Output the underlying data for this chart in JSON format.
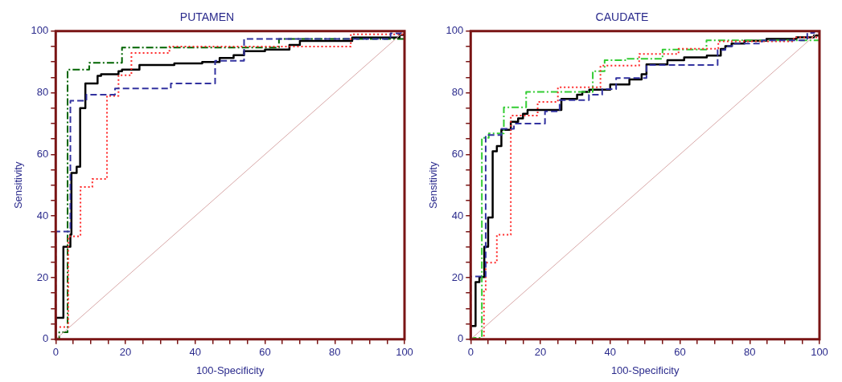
{
  "chart_data": [
    {
      "type": "step",
      "title": "PUTAMEN",
      "xlabel": "100-Specificity",
      "ylabel": "Sensitivity",
      "xlim": [
        0,
        100
      ],
      "ylim": [
        0,
        100
      ],
      "xticks": [
        0,
        {
          "value": 5,
          "label": null
        },
        {
          "value": 10,
          "label": null
        },
        {
          "value": 15,
          "label": null
        },
        20,
        {
          "value": 25,
          "label": null
        },
        {
          "value": 30,
          "label": null
        },
        {
          "value": 35,
          "label": null
        },
        40,
        {
          "value": 45,
          "label": null
        },
        {
          "value": 50,
          "label": null
        },
        {
          "value": 55,
          "label": null
        },
        60,
        {
          "value": 65,
          "label": null
        },
        {
          "value": 70,
          "label": null
        },
        {
          "value": 75,
          "label": null
        },
        80,
        {
          "value": 85,
          "label": null
        },
        {
          "value": 90,
          "label": null
        },
        {
          "value": 95,
          "label": null
        },
        100
      ],
      "yticks": [
        0,
        {
          "value": 5,
          "label": null
        },
        {
          "value": 10,
          "label": null
        },
        {
          "value": 15,
          "label": null
        },
        20,
        {
          "value": 25,
          "label": null
        },
        {
          "value": 30,
          "label": null
        },
        {
          "value": 35,
          "label": null
        },
        40,
        {
          "value": 45,
          "label": null
        },
        {
          "value": 50,
          "label": null
        },
        {
          "value": 55,
          "label": null
        },
        60,
        {
          "value": 65,
          "label": null
        },
        {
          "value": 70,
          "label": null
        },
        {
          "value": 75,
          "label": null
        },
        80,
        {
          "value": 85,
          "label": null
        },
        {
          "value": 90,
          "label": null
        },
        {
          "value": 95,
          "label": null
        },
        100
      ],
      "grid": false,
      "legend": false,
      "marker": "none",
      "series": [
        {
          "type": "line",
          "color": "#d8a8a8",
          "line_style": "solid",
          "x": [
            0,
            100
          ],
          "values": [
            0,
            100
          ]
        },
        {
          "color": "#3333a0",
          "line_style": "dashed",
          "x": [
            0,
            0,
            4.2,
            8.8,
            17,
            33,
            45.7,
            54,
            96,
            99,
            100
          ],
          "values": [
            0,
            35,
            77.4,
            79.4,
            81.4,
            83,
            90.4,
            97.5,
            99.3,
            100,
            100
          ]
        },
        {
          "color": "#ff2a2a",
          "line_style": "dotted",
          "x": [
            0,
            0,
            3.6,
            7.1,
            10.5,
            14.7,
            18,
            21.7,
            32.6,
            84.6,
            100
          ],
          "values": [
            0,
            4,
            33.4,
            49.4,
            52,
            79,
            85.7,
            92.9,
            95,
            99,
            100
          ]
        },
        {
          "color": "#006400",
          "line_style": "dashdot",
          "x": [
            0,
            1,
            3.4,
            9.6,
            19,
            64,
            100
          ],
          "values": [
            0,
            2.3,
            87.5,
            89.7,
            94.7,
            97.5,
            97.5
          ]
        },
        {
          "color": "#000000",
          "line_style": "solid",
          "x": [
            0,
            0,
            2.2,
            4.2,
            4.5,
            6,
            7,
            8.5,
            12,
            13,
            18,
            19,
            24,
            34,
            42,
            47,
            51,
            54,
            60,
            67,
            70,
            85,
            98.6,
            100
          ],
          "values": [
            0,
            7,
            30,
            34,
            54,
            56,
            75,
            83,
            85.5,
            86,
            87,
            87.5,
            89,
            89.5,
            90,
            91.3,
            92.2,
            93.5,
            94,
            95.5,
            96.8,
            97.9,
            98.8,
            100
          ]
        }
      ]
    },
    {
      "type": "step",
      "title": "CAUDATE",
      "xlabel": "100-Specificity",
      "ylabel": "Sensitivity",
      "xlim": [
        0,
        100
      ],
      "ylim": [
        0,
        100
      ],
      "xticks": [
        0,
        {
          "value": 5,
          "label": null
        },
        {
          "value": 10,
          "label": null
        },
        {
          "value": 15,
          "label": null
        },
        20,
        {
          "value": 25,
          "label": null
        },
        {
          "value": 30,
          "label": null
        },
        {
          "value": 35,
          "label": null
        },
        40,
        {
          "value": 45,
          "label": null
        },
        {
          "value": 50,
          "label": null
        },
        {
          "value": 55,
          "label": null
        },
        60,
        {
          "value": 65,
          "label": null
        },
        {
          "value": 70,
          "label": null
        },
        {
          "value": 75,
          "label": null
        },
        80,
        {
          "value": 85,
          "label": null
        },
        {
          "value": 90,
          "label": null
        },
        {
          "value": 95,
          "label": null
        },
        100
      ],
      "yticks": [
        0,
        {
          "value": 5,
          "label": null
        },
        {
          "value": 10,
          "label": null
        },
        {
          "value": 15,
          "label": null
        },
        20,
        {
          "value": 25,
          "label": null
        },
        {
          "value": 30,
          "label": null
        },
        {
          "value": 35,
          "label": null
        },
        40,
        {
          "value": 45,
          "label": null
        },
        {
          "value": 50,
          "label": null
        },
        {
          "value": 55,
          "label": null
        },
        60,
        {
          "value": 65,
          "label": null
        },
        {
          "value": 70,
          "label": null
        },
        {
          "value": 75,
          "label": null
        },
        80,
        {
          "value": 85,
          "label": null
        },
        {
          "value": 90,
          "label": null
        },
        {
          "value": 95,
          "label": null
        },
        100
      ],
      "grid": false,
      "legend": false,
      "marker": "none",
      "series": [
        {
          "type": "line",
          "color": "#d8a8a8",
          "line_style": "solid",
          "x": [
            0,
            100
          ],
          "values": [
            0,
            100
          ]
        },
        {
          "color": "#3333a0",
          "line_style": "dashed",
          "x": [
            0,
            0,
            4.3,
            8.8,
            12.4,
            21.3,
            25.5,
            33.9,
            37.7,
            41.7,
            50.4,
            70.8,
            73,
            75,
            83.5,
            96.5,
            98.5,
            100
          ],
          "values": [
            0,
            20.4,
            66.3,
            68.3,
            70,
            74,
            77.6,
            79.4,
            81.2,
            84.8,
            89,
            93.9,
            95.1,
            96,
            97,
            99.4,
            100,
            100
          ]
        },
        {
          "color": "#ff2a2a",
          "line_style": "dotted",
          "x": [
            0,
            3.8,
            4.3,
            7.5,
            11.5,
            19.2,
            25,
            37.2,
            48.3,
            59.6,
            71,
            92.6,
            100
          ],
          "values": [
            0,
            16,
            24.9,
            33.9,
            72.6,
            77,
            81.8,
            88.8,
            92.6,
            94.3,
            96.7,
            98,
            98.5
          ]
        },
        {
          "color": "#33cc33",
          "line_style": "dashdot",
          "x": [
            0,
            0,
            3.2,
            5.2,
            9.5,
            15.9,
            35,
            38.4,
            44.9,
            55,
            67.6,
            100
          ],
          "values": [
            0,
            0.5,
            65.4,
            66.8,
            75.3,
            80.3,
            87,
            90.6,
            91,
            94,
            97,
            98
          ]
        },
        {
          "color": "#000000",
          "line_style": "solid",
          "x": [
            0,
            0,
            1.4,
            2.5,
            3.9,
            5,
            6.3,
            7.5,
            8.8,
            11.5,
            13.6,
            15,
            16.3,
            26,
            30.5,
            32,
            34,
            40,
            45.5,
            49,
            50.4,
            56.4,
            61.2,
            67.7,
            71.7,
            73,
            74.8,
            78.5,
            84.8,
            93.4,
            98.4,
            100
          ],
          "values": [
            0,
            4.3,
            18.6,
            20.2,
            30,
            39.5,
            61,
            62.7,
            68,
            70.6,
            71.7,
            73.2,
            74.4,
            78,
            79.4,
            80.3,
            81,
            82.7,
            84.3,
            86,
            89.2,
            90.6,
            91.5,
            92.1,
            94.2,
            95.1,
            96,
            96.9,
            97.5,
            98,
            98.6,
            100
          ]
        }
      ]
    }
  ]
}
